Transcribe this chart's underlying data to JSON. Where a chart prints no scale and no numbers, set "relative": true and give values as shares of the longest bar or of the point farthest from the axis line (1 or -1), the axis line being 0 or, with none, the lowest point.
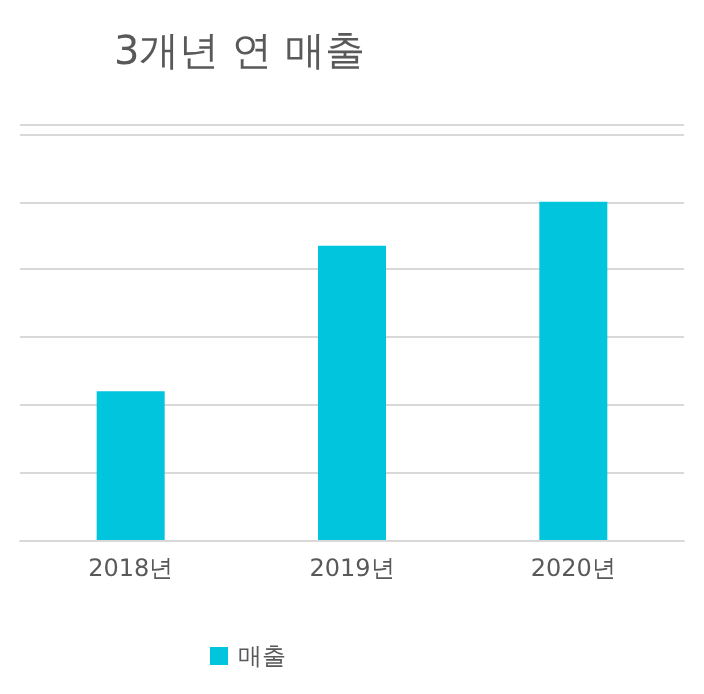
{
  "chart_data": {
    "type": "bar",
    "title": "3개년 연 매출",
    "categories": [
      "2018년",
      "2019년",
      "2020년"
    ],
    "series": [
      {
        "name": "매출",
        "color": "#00c5dc",
        "values": [
          0.44,
          0.87,
          1
        ]
      }
    ],
    "relative": true,
    "grid": "y",
    "legend": "bottom"
  }
}
